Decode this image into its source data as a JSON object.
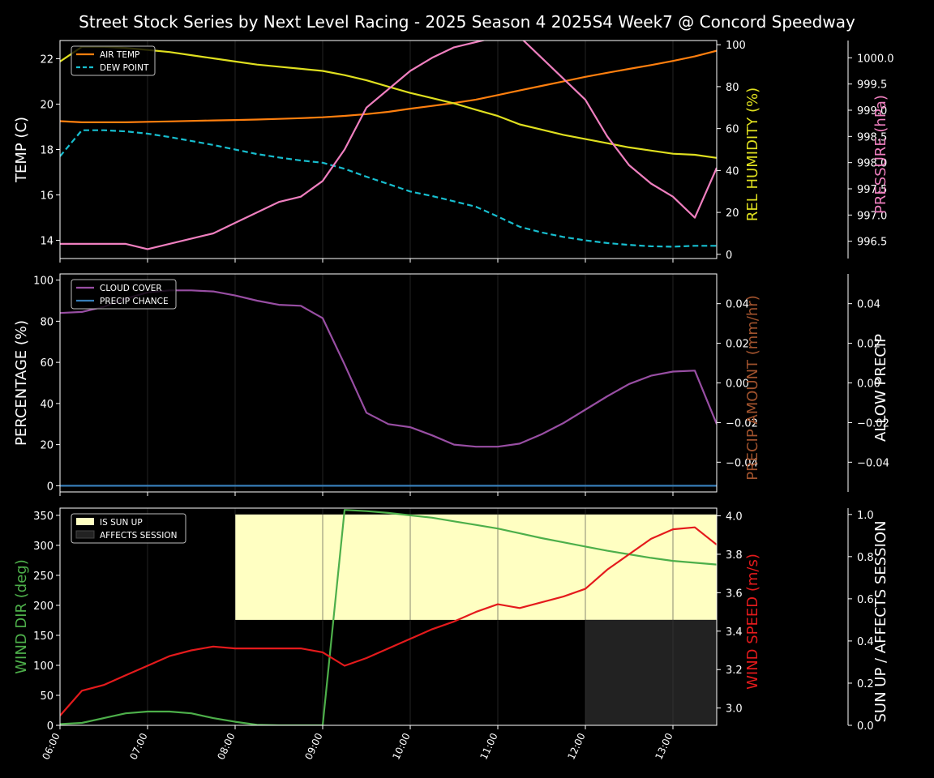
{
  "chart_data": {
    "title": "Street Stock Series by Next Level Racing - 2025 Season 4 2025S4 Week7 @ Concord Speedway",
    "x_ticks": [
      "06:00",
      "07:00",
      "08:00",
      "09:00",
      "10:00",
      "11:00",
      "12:00",
      "13:00"
    ],
    "x_hours": [
      6.0,
      6.25,
      6.5,
      6.75,
      7.0,
      7.25,
      7.5,
      7.75,
      8.0,
      8.25,
      8.5,
      8.75,
      9.0,
      9.25,
      9.5,
      9.75,
      10.0,
      10.25,
      10.5,
      10.75,
      11.0,
      11.25,
      11.5,
      11.75,
      12.0,
      12.25,
      12.5,
      12.75,
      13.0,
      13.25,
      13.5
    ],
    "panels": [
      {
        "type": "line",
        "left_label": "TEMP (C)",
        "left_label_color": "#ffffff",
        "left_ylim": [
          13.2,
          22.8
        ],
        "left_ticks": [
          "14",
          "16",
          "18",
          "20",
          "22"
        ],
        "right_label": "REL HUMIDITY (%)",
        "right_label_color": "#dfdf1f",
        "right_ylim": [
          -2,
          102
        ],
        "right_ticks": [
          "0",
          "20",
          "40",
          "60",
          "80",
          "100"
        ],
        "far_label": "PRESSURE (hPa)",
        "far_label_color": "#ef7fbf",
        "far_ylim": [
          996.17,
          1000.33
        ],
        "far_ticks": [
          "996.5",
          "997.0",
          "997.5",
          "998.0",
          "998.5",
          "999.0",
          "999.5",
          "1000.0"
        ],
        "legend": [
          "AIR TEMP",
          "DEW POINT"
        ],
        "series": [
          {
            "name": "AIR TEMP",
            "axis": "left",
            "color": "#ff7f0e",
            "dash": "",
            "values": [
              19.25,
              19.2,
              19.2,
              19.2,
              19.22,
              19.24,
              19.26,
              19.28,
              19.3,
              19.32,
              19.35,
              19.38,
              19.42,
              19.48,
              19.56,
              19.66,
              19.8,
              19.92,
              20.05,
              20.2,
              20.4,
              20.6,
              20.8,
              21.0,
              21.2,
              21.38,
              21.55,
              21.72,
              21.9,
              22.1,
              22.35
            ]
          },
          {
            "name": "DEW POINT",
            "axis": "left",
            "color": "#17becf",
            "dash": "7,4",
            "values": [
              17.7,
              18.85,
              18.85,
              18.8,
              18.7,
              18.55,
              18.38,
              18.2,
              18.0,
              17.8,
              17.65,
              17.52,
              17.42,
              17.15,
              16.8,
              16.48,
              16.15,
              15.95,
              15.72,
              15.48,
              15.05,
              14.6,
              14.35,
              14.15,
              14.0,
              13.88,
              13.8,
              13.74,
              13.72,
              13.76,
              13.76
            ]
          },
          {
            "axis": "right",
            "color": "#dfdf1f",
            "dash": "",
            "values": [
              92,
              99,
              99,
              98.5,
              97.5,
              96.5,
              95,
              93.5,
              92,
              90.5,
              89.5,
              88.5,
              87.5,
              85.5,
              83,
              80,
              77,
              74.5,
              72,
              69,
              66,
              62,
              59.5,
              57,
              55,
              53,
              51,
              49.5,
              48,
              47.5,
              46
            ]
          },
          {
            "axis": "far",
            "color": "#ef7fbf",
            "dash": "",
            "values": [
              996.45,
              996.45,
              996.45,
              996.45,
              996.35,
              996.45,
              996.55,
              996.65,
              996.85,
              997.05,
              997.25,
              997.35,
              997.65,
              998.25,
              999.05,
              999.4,
              999.75,
              1000.0,
              1000.2,
              1000.3,
              1000.4,
              1000.4,
              1000.0,
              999.6,
              999.2,
              998.5,
              997.95,
              997.6,
              997.35,
              996.95,
              997.9
            ]
          }
        ]
      },
      {
        "type": "line",
        "left_label": "PERCENTAGE (%)",
        "left_label_color": "#ffffff",
        "left_ylim": [
          -3,
          103
        ],
        "left_ticks": [
          "0",
          "20",
          "40",
          "60",
          "80",
          "100"
        ],
        "right_label": "PRECIP AMOUNT (mm/hr)",
        "right_label_color": "#a0522d",
        "right_ylim": [
          -0.055,
          0.055
        ],
        "right_ticks": [
          "−0.04",
          "−0.02",
          "0.00",
          "0.02",
          "0.04"
        ],
        "far_label": "ALLOW PRECIP",
        "far_label_color": "#ffffff",
        "far_ylim": [
          -0.055,
          0.055
        ],
        "far_ticks": [
          "−0.04",
          "−0.02",
          "0.00",
          "0.02",
          "0.04"
        ],
        "legend": [
          "CLOUD COVER",
          "PRECIP CHANCE"
        ],
        "series": [
          {
            "name": "CLOUD COVER",
            "axis": "left",
            "color": "#984ea3",
            "dash": "",
            "values": [
              84,
              84.5,
              87,
              91,
              94,
              95,
              95,
              94.5,
              92.5,
              90,
              88,
              87.5,
              81.5,
              59,
              35.5,
              30,
              28.5,
              24.5,
              20,
              19,
              19,
              20.5,
              25,
              30.5,
              37,
              43.5,
              49.5,
              53.5,
              55.5,
              56,
              30
            ]
          },
          {
            "name": "PRECIP CHANCE",
            "axis": "left",
            "color": "#377eb8",
            "dash": "",
            "values": [
              0,
              0,
              0,
              0,
              0,
              0,
              0,
              0,
              0,
              0,
              0,
              0,
              0,
              0,
              0,
              0,
              0,
              0,
              0,
              0,
              0,
              0,
              0,
              0,
              0,
              0,
              0,
              0,
              0,
              0,
              0
            ]
          }
        ]
      },
      {
        "type": "line",
        "left_label": "WIND DIR (deg)",
        "left_label_color": "#4daf4a",
        "left_ylim": [
          0,
          362
        ],
        "left_ticks": [
          "0",
          "50",
          "100",
          "150",
          "200",
          "250",
          "300",
          "350"
        ],
        "right_label": "WIND SPEED (m/s)",
        "right_label_color": "#e41a1c",
        "right_ylim": [
          2.91,
          4.04
        ],
        "right_ticks": [
          "3.0",
          "3.2",
          "3.4",
          "3.6",
          "3.8",
          "4.0"
        ],
        "far_label": "SUN UP / AFFECTS SESSION",
        "far_label_color": "#ffffff",
        "far_ylim": [
          0,
          1.03
        ],
        "far_ticks": [
          "0.0",
          "0.2",
          "0.4",
          "0.6",
          "0.8",
          "1.0"
        ],
        "legend": [
          "IS SUN UP",
          "AFFECTS SESSION"
        ],
        "sun_up": {
          "start": 8.0,
          "end": 13.5,
          "low": 0.5,
          "high": 1.0,
          "color": "#ffffc2"
        },
        "affects_session": {
          "start": 12.0,
          "end": 13.5,
          "low": 0,
          "high": 0.5,
          "color": "#222222"
        },
        "series": [
          {
            "name": "WIND DIR",
            "axis": "left",
            "color": "#4daf4a",
            "dash": "",
            "values": [
              2,
              4,
              12,
              20,
              23,
              23,
              20,
              12,
              6,
              1,
              0,
              0,
              0,
              359,
              357,
              354,
              350,
              346,
              340,
              334,
              328,
              320,
              312,
              305,
              298,
              291,
              285,
              279,
              274,
              271,
              268
            ]
          },
          {
            "name": "WIND SPEED",
            "axis": "right",
            "color": "#e41a1c",
            "dash": "",
            "values": [
              2.96,
              3.09,
              3.12,
              3.17,
              3.22,
              3.27,
              3.3,
              3.32,
              3.31,
              3.31,
              3.31,
              3.31,
              3.29,
              3.22,
              3.26,
              3.31,
              3.36,
              3.41,
              3.45,
              3.5,
              3.54,
              3.52,
              3.55,
              3.58,
              3.62,
              3.72,
              3.8,
              3.88,
              3.93,
              3.94,
              3.85
            ]
          }
        ]
      }
    ]
  }
}
